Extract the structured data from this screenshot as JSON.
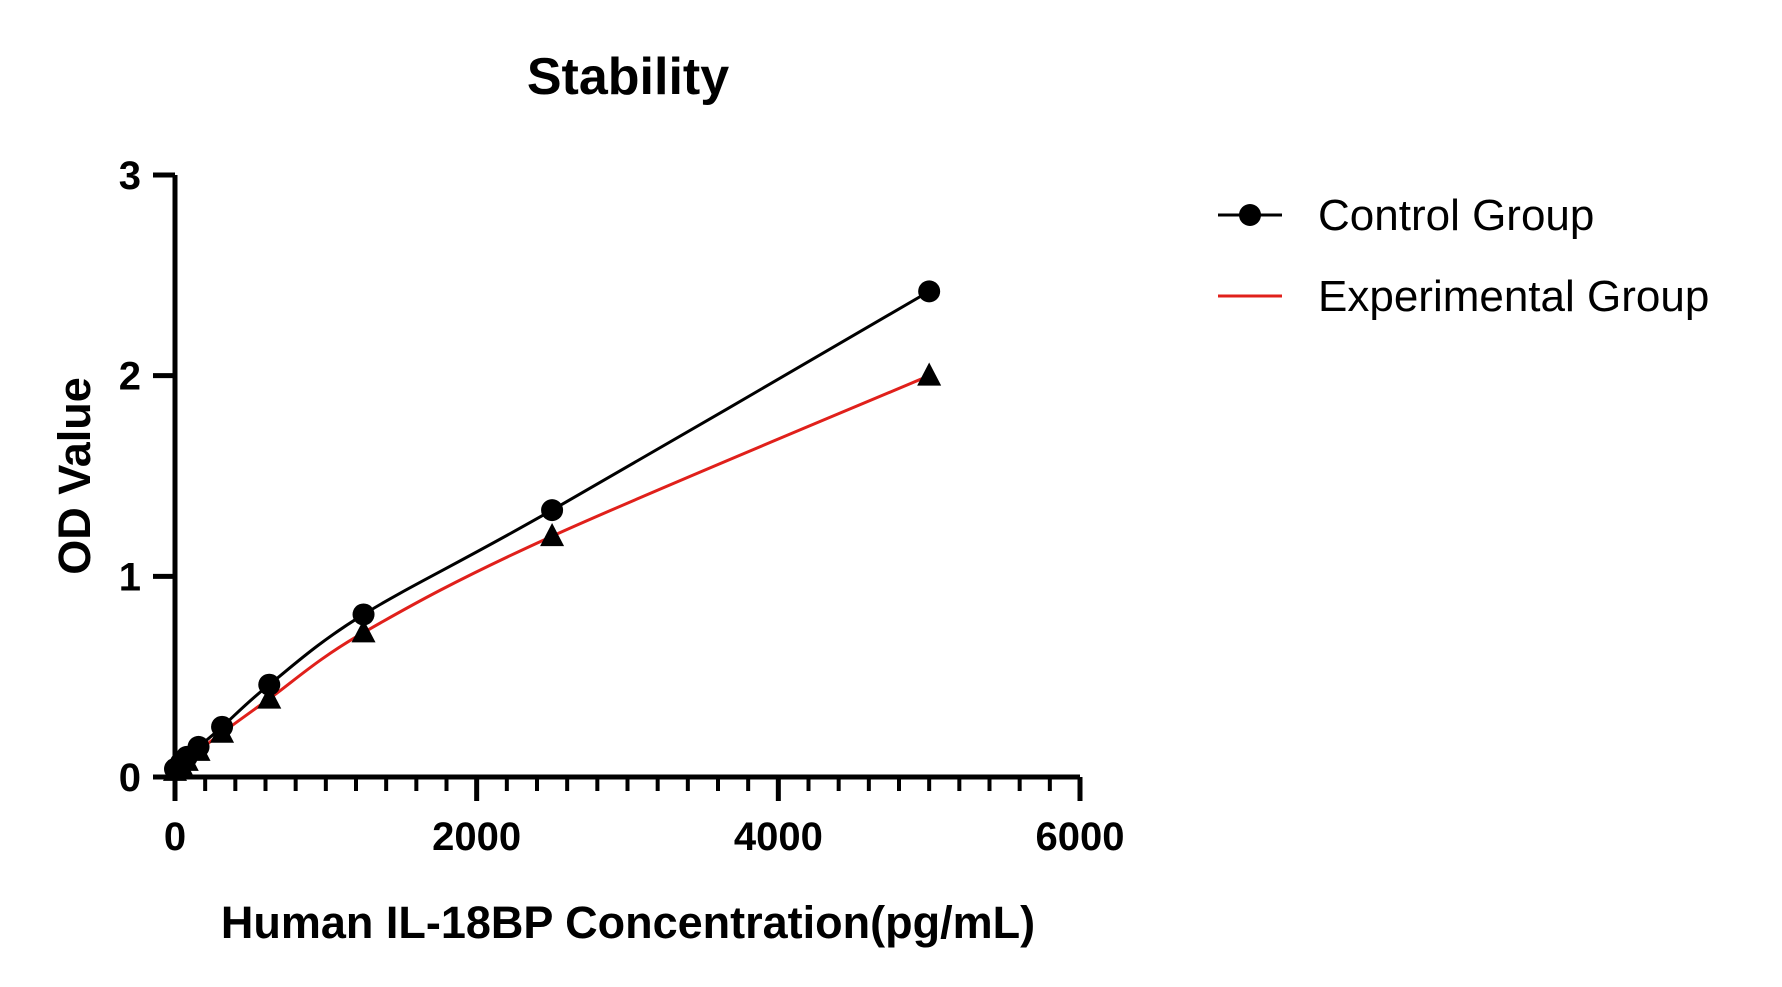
{
  "chart_data": {
    "type": "scatter",
    "title": "Stability",
    "xlabel": "Human IL-18BP Concentration(pg/mL)",
    "ylabel": "OD Value",
    "xlim": [
      0,
      6000
    ],
    "ylim": [
      0,
      3
    ],
    "x_ticks": [
      0,
      2000,
      4000,
      6000
    ],
    "x_tick_labels": [
      "0",
      "2000",
      "4000",
      "6000"
    ],
    "y_ticks": [
      0,
      1,
      2,
      3
    ],
    "y_tick_labels": [
      "0",
      "1",
      "2",
      "3"
    ],
    "legend_position": "top-right",
    "grid": false,
    "series": [
      {
        "name": "Control Group",
        "marker": "circle",
        "color": "#000000",
        "x": [
          0,
          39,
          78,
          156,
          312,
          625,
          1250,
          2500,
          5000
        ],
        "y": [
          0.04,
          0.07,
          0.1,
          0.15,
          0.25,
          0.46,
          0.81,
          1.33,
          2.42
        ]
      },
      {
        "name": "Experimental Group",
        "marker": "triangle",
        "color": "#e0201b",
        "x": [
          0,
          39,
          78,
          156,
          312,
          625,
          1250,
          2500,
          5000
        ],
        "y": [
          0.03,
          0.06,
          0.08,
          0.13,
          0.22,
          0.39,
          0.72,
          1.2,
          2.0
        ]
      }
    ]
  }
}
